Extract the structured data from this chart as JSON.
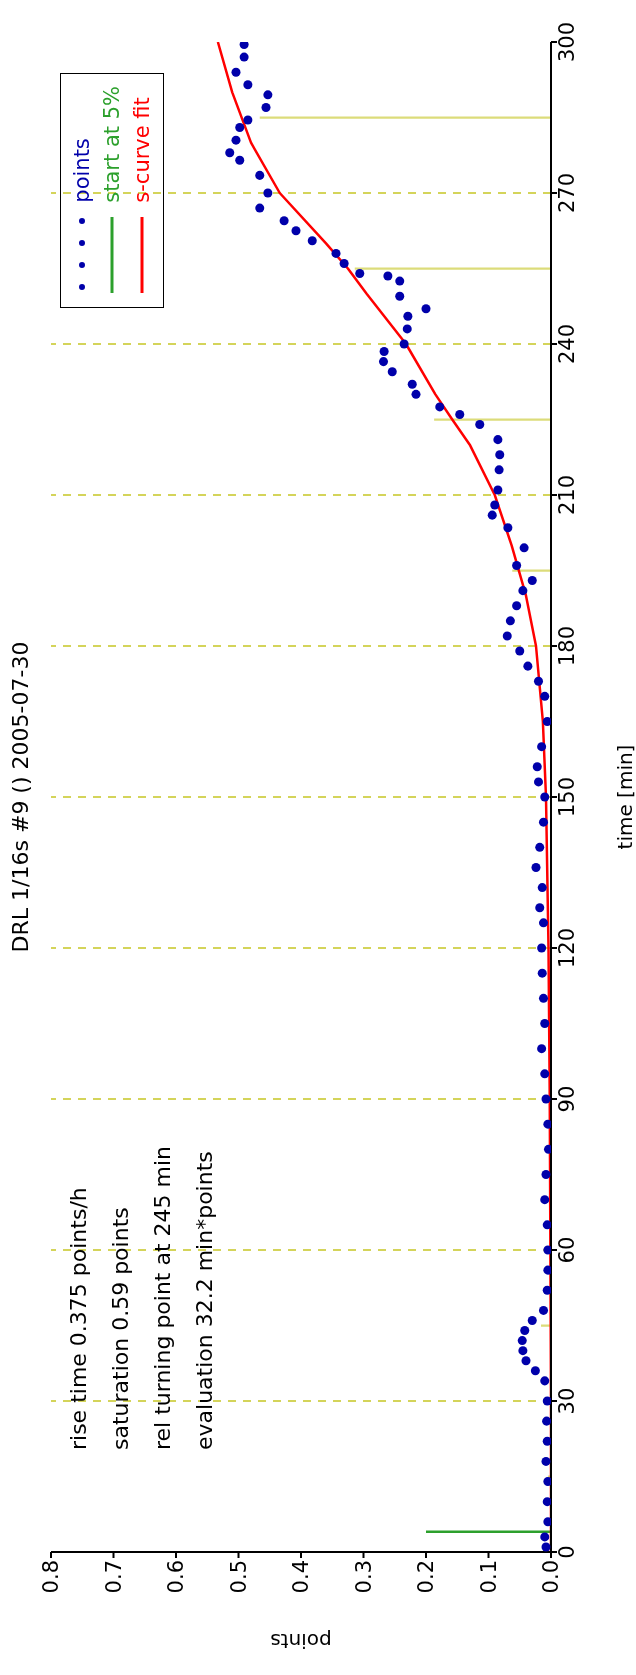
{
  "chart_data": {
    "type": "histogram",
    "orientation": "horizontal",
    "title": "DRL 1/16s #9 () 2005-07-30",
    "xlabel": "points",
    "ylabel": "time [min]",
    "bins": [
      0,
      30,
      60,
      90,
      120,
      150,
      180,
      210,
      240,
      270,
      300
    ],
    "values": [
      0.005,
      0.016,
      null,
      null,
      null,
      null,
      0.062,
      0.187,
      0.314,
      0.466
    ],
    "color": "#dcdc7a",
    "series": [
      {
        "name": "points",
        "type": "scatter",
        "color": "#0000aa",
        "marker": "circle",
        "x": [
          1,
          3,
          6,
          10,
          14,
          18,
          22,
          26,
          30,
          34,
          36,
          38,
          40,
          42,
          44,
          46,
          48,
          52,
          56,
          60,
          65,
          70,
          75,
          80,
          85,
          90,
          95,
          100,
          105,
          110,
          115,
          120,
          125,
          128,
          132,
          136,
          140,
          145,
          150,
          153,
          156,
          160,
          165,
          170,
          173,
          176,
          179,
          182,
          185,
          188,
          191,
          193,
          196,
          199.5,
          203.5,
          206,
          208,
          211,
          215,
          218,
          221,
          224,
          226,
          227.5,
          230,
          232,
          234.5,
          236.5,
          238.5,
          240,
          243,
          245.5,
          247,
          249.5,
          252.5,
          253.5,
          254,
          256,
          258,
          260.5,
          262.5,
          264.5,
          267,
          270,
          273.5,
          276.5,
          278,
          280.5,
          283,
          284.5,
          287,
          289.5,
          291.5,
          294,
          297,
          299.5
        ],
        "values": [
          0.008,
          0.01,
          0.005,
          0.006,
          0.005,
          0.008,
          0.006,
          0.007,
          0.006,
          0.01,
          0.025,
          0.04,
          0.045,
          0.046,
          0.042,
          0.03,
          0.012,
          0.006,
          0.005,
          0.005,
          0.006,
          0.01,
          0.008,
          0.004,
          0.005,
          0.008,
          0.01,
          0.015,
          0.01,
          0.012,
          0.014,
          0.015,
          0.012,
          0.018,
          0.014,
          0.024,
          0.018,
          0.012,
          0.01,
          0.02,
          0.022,
          0.015,
          0.006,
          0.01,
          0.02,
          0.037,
          0.05,
          0.07,
          0.065,
          0.055,
          0.045,
          0.03,
          0.055,
          0.043,
          0.069,
          0.094,
          0.09,
          0.085,
          0.083,
          0.082,
          0.085,
          0.114,
          0.146,
          0.178,
          0.216,
          0.222,
          0.254,
          0.268,
          0.267,
          0.235,
          0.23,
          0.229,
          0.2,
          0.242,
          0.242,
          0.261,
          0.306,
          0.331,
          0.344,
          0.382,
          0.408,
          0.427,
          0.466,
          0.453,
          0.466,
          0.498,
          0.514,
          0.504,
          0.498,
          0.485,
          0.456,
          0.453,
          0.485,
          0.504,
          0.491,
          0.491
        ]
      },
      {
        "name": "start at 5%",
        "type": "line",
        "color": "#2ca02c",
        "line_style": "solid",
        "x": [
          4,
          4
        ],
        "values": [
          0,
          0.2
        ]
      },
      {
        "name": "s-curve fit",
        "type": "line",
        "color": "#ff0000",
        "line_style": "solid",
        "x": [
          0,
          30,
          60,
          90,
          120,
          150,
          165,
          180,
          190,
          200,
          210,
          220,
          225,
          230,
          240,
          250,
          255,
          260,
          270,
          280,
          290,
          300
        ],
        "values": [
          0,
          0,
          0.001,
          0.002,
          0.004,
          0.008,
          0.013,
          0.024,
          0.04,
          0.063,
          0.09,
          0.13,
          0.158,
          0.185,
          0.232,
          0.295,
          0.325,
          0.36,
          0.434,
          0.48,
          0.51,
          0.533
        ]
      }
    ],
    "xlim": [
      0.8,
      0
    ],
    "xticks": [
      0.8,
      0.7,
      0.6,
      0.5,
      0.4,
      0.3,
      0.2,
      0.1,
      {
        "value": 0,
        "label": "0.0"
      }
    ],
    "ylim": [
      0,
      300
    ],
    "yticks": [
      0,
      30,
      60,
      90,
      120,
      150,
      180,
      210,
      240,
      270,
      300
    ],
    "ref_lines": [
      {
        "axis": "y",
        "value": 30,
        "color": "#d4d45a",
        "line_style": "dashed"
      },
      {
        "axis": "y",
        "value": 60,
        "color": "#d4d45a",
        "line_style": "dashed"
      },
      {
        "axis": "y",
        "value": 90,
        "color": "#d4d45a",
        "line_style": "dashed"
      },
      {
        "axis": "y",
        "value": 120,
        "color": "#d4d45a",
        "line_style": "dashed"
      },
      {
        "axis": "y",
        "value": 150,
        "color": "#d4d45a",
        "line_style": "dashed"
      },
      {
        "axis": "y",
        "value": 180,
        "color": "#d4d45a",
        "line_style": "dashed"
      },
      {
        "axis": "y",
        "value": 210,
        "color": "#d4d45a",
        "line_style": "dashed"
      },
      {
        "axis": "y",
        "value": 240,
        "color": "#d4d45a",
        "line_style": "dashed"
      },
      {
        "axis": "y",
        "value": 270,
        "color": "#d4d45a",
        "line_style": "dashed"
      }
    ],
    "annotations": [
      "rise time 0.375 points/h",
      "saturation 0.59 points",
      "rel turning point at 245 min",
      "evaluation 32.2 min*points"
    ],
    "legend": "top left"
  }
}
